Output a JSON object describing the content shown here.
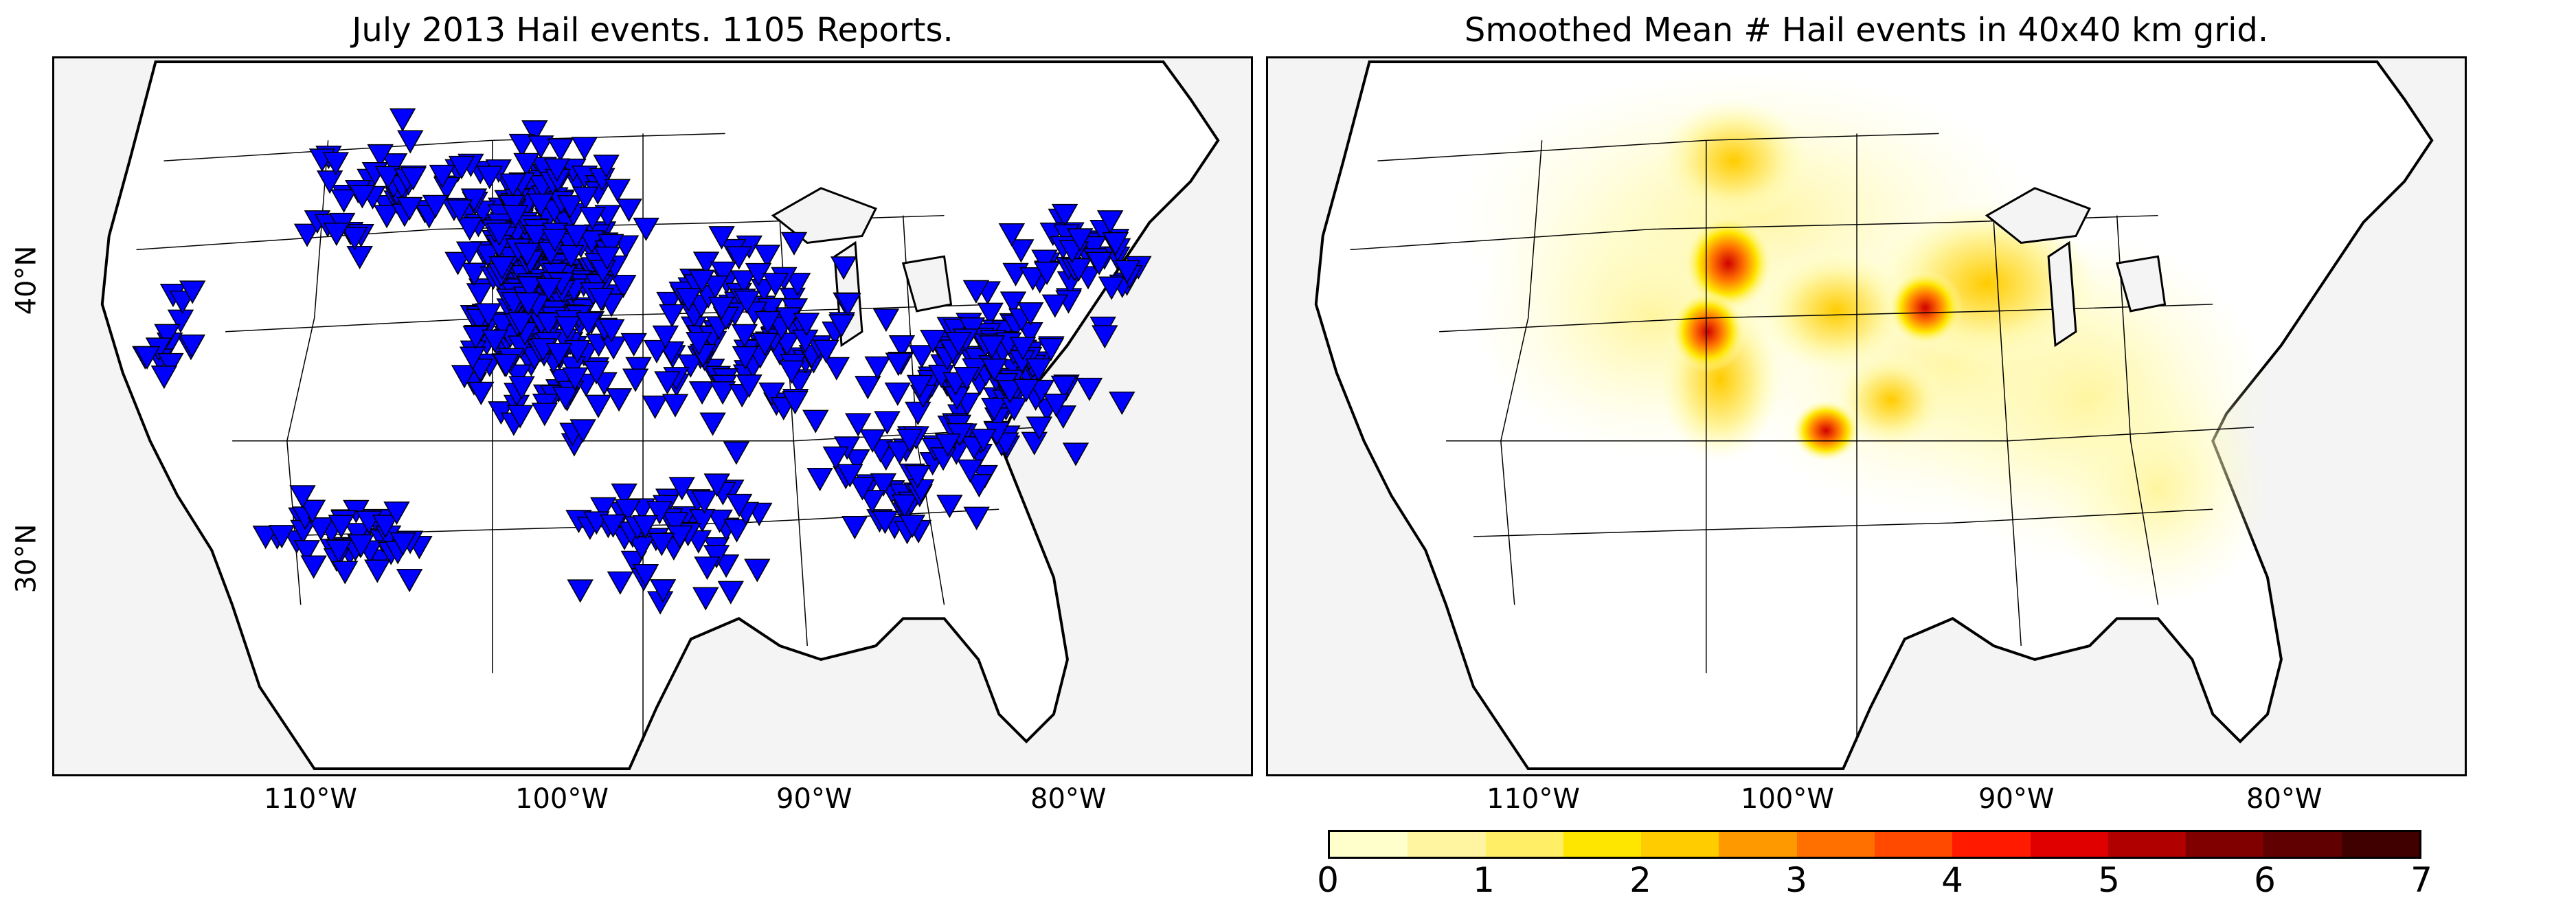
{
  "left_map": {
    "title": "July 2013 Hail events. 1105 Reports.",
    "marker_color": "#0000ff",
    "marker_icon": "down-triangle",
    "lon_ticks": [
      "110°W",
      "100°W",
      "90°W",
      "80°W"
    ],
    "lat_ticks": [
      "40°N",
      "30°N"
    ]
  },
  "right_map": {
    "title": "Smoothed Mean # Hail events in 40x40 km grid.",
    "lon_ticks": [
      "110°W",
      "100°W",
      "90°W",
      "80°W"
    ]
  },
  "colorbar": {
    "ticks": [
      "0",
      "1",
      "2",
      "3",
      "4",
      "5",
      "6",
      "7"
    ],
    "colors": [
      "#ffffcc",
      "#fff5a0",
      "#ffee66",
      "#ffe600",
      "#ffcc00",
      "#ff9900",
      "#ff7000",
      "#ff4a00",
      "#ff1a00",
      "#e00000",
      "#b00000",
      "#800000",
      "#600000",
      "#400000"
    ]
  },
  "map_colors": {
    "land": "#ffffff",
    "water": "#f4f4f4",
    "border": "#000000"
  }
}
